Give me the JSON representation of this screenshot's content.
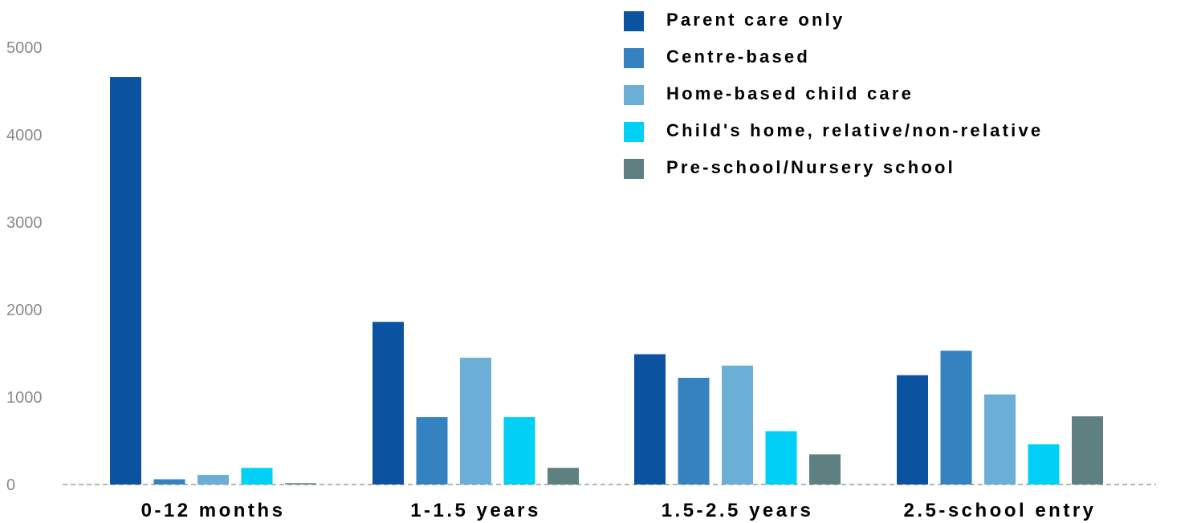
{
  "chart_data": {
    "type": "bar",
    "categories": [
      "0-12 months",
      "1-1.5 years",
      "1.5-2.5 years",
      "2.5-school entry"
    ],
    "series": [
      {
        "name": "Parent care only",
        "color": "#0b52a0",
        "values": [
          4660,
          1860,
          1490,
          1250
        ]
      },
      {
        "name": "Centre-based",
        "color": "#3582c0",
        "values": [
          60,
          770,
          1220,
          1530
        ]
      },
      {
        "name": "Home-based child care",
        "color": "#6baed6",
        "values": [
          110,
          1450,
          1360,
          1030
        ]
      },
      {
        "name": "Child's home, relative/non-relative",
        "color": "#00d0f5",
        "values": [
          190,
          770,
          610,
          460
        ]
      },
      {
        "name": "Pre-school/Nursery school",
        "color": "#5f8080",
        "values": [
          15,
          190,
          345,
          780
        ]
      }
    ],
    "yticks": [
      "0",
      "1000",
      "2000",
      "3000",
      "4000",
      "5000"
    ],
    "ylim": [
      0,
      5000
    ],
    "grid": false,
    "legend": "top-right",
    "baseline_style": "dashed"
  }
}
